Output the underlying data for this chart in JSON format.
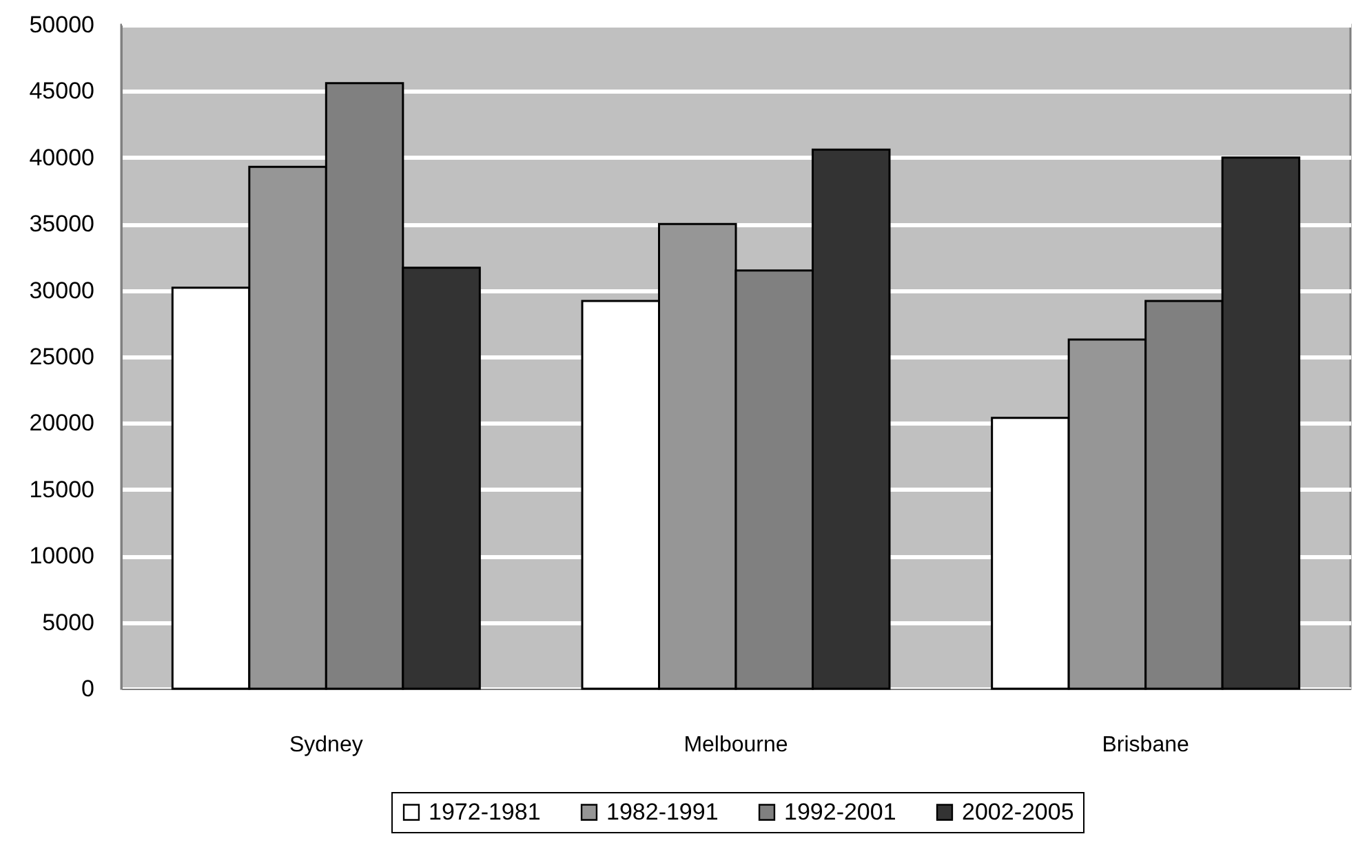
{
  "chart_data": {
    "type": "bar",
    "categories": [
      "Sydney",
      "Melbourne",
      "Brisbane"
    ],
    "series": [
      {
        "name": "1972-1981",
        "color": "#ffffff",
        "values": [
          30200,
          29200,
          20400
        ]
      },
      {
        "name": "1982-1991",
        "color": "#969696",
        "values": [
          39300,
          35000,
          26300
        ]
      },
      {
        "name": "1992-2001",
        "color": "#808080",
        "values": [
          45600,
          31500,
          29200
        ]
      },
      {
        "name": "2002-2005",
        "color": "#333333",
        "values": [
          31700,
          40600,
          40000
        ]
      }
    ],
    "ylim": [
      0,
      50000
    ],
    "yticks": [
      0,
      5000,
      10000,
      15000,
      20000,
      25000,
      30000,
      35000,
      40000,
      45000,
      50000
    ],
    "grid": "y",
    "legend": "bottom"
  }
}
